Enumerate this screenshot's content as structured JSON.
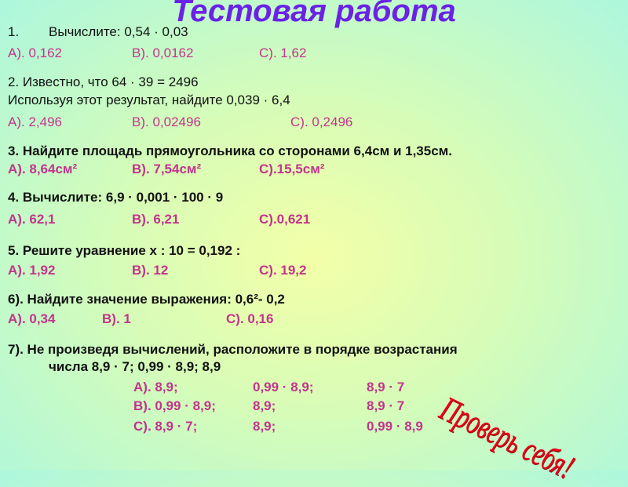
{
  "title": "Тестовая работа",
  "q1": {
    "num": "1.",
    "text": "Вычислите: 0,54 · 0,03",
    "a": "А). 0,162",
    "b": "В). 0,0162",
    "c": "С). 1,62"
  },
  "q2": {
    "text1": "2. Известно, что 64 · 39 = 2496",
    "text2": "Используя этот результат, найдите 0,039 · 6,4",
    "a": "А). 2,496",
    "b": "В). 0,02496",
    "c": "С). 0,2496"
  },
  "q3": {
    "text": "3. Найдите площадь прямоугольника со сторонами 6,4см и 1,35см.",
    "a": "А). 8,64см²",
    "b": "В). 7,54см²",
    "c": "С).15,5см²"
  },
  "q4": {
    "text": "4. Вычислите: 6,9 · 0,001 · 100 · 9",
    "a": "А). 62,1",
    "b": "В). 6,21",
    "c": "С).0,621"
  },
  "q5": {
    "text": "5. Решите уравнение х : 10 = 0,192  :",
    "a": "А). 1,92",
    "b": "В). 12",
    "c": "С). 19,2"
  },
  "q6": {
    "text": "6). Найдите значение выражения: 0,6²- 0,2",
    "a": "А). 0,34",
    "b": "В). 1",
    "c": "С). 0,16"
  },
  "q7": {
    "text1": "7). Не произведя вычислений, расположите в порядке возрастания",
    "text2": "числа   8,9 · 7;   0,99 · 8,9;   8,9",
    "rows": [
      [
        "А). 8,9;",
        "0,99 · 8,9;",
        "8,9 · 7"
      ],
      [
        "В). 0,99 · 8,9;",
        "8,9;",
        "8,9 · 7"
      ],
      [
        "С). 8,9 · 7;",
        "8,9;",
        "0,99 · 8,9"
      ]
    ]
  },
  "stamp": "Проверь себя!"
}
